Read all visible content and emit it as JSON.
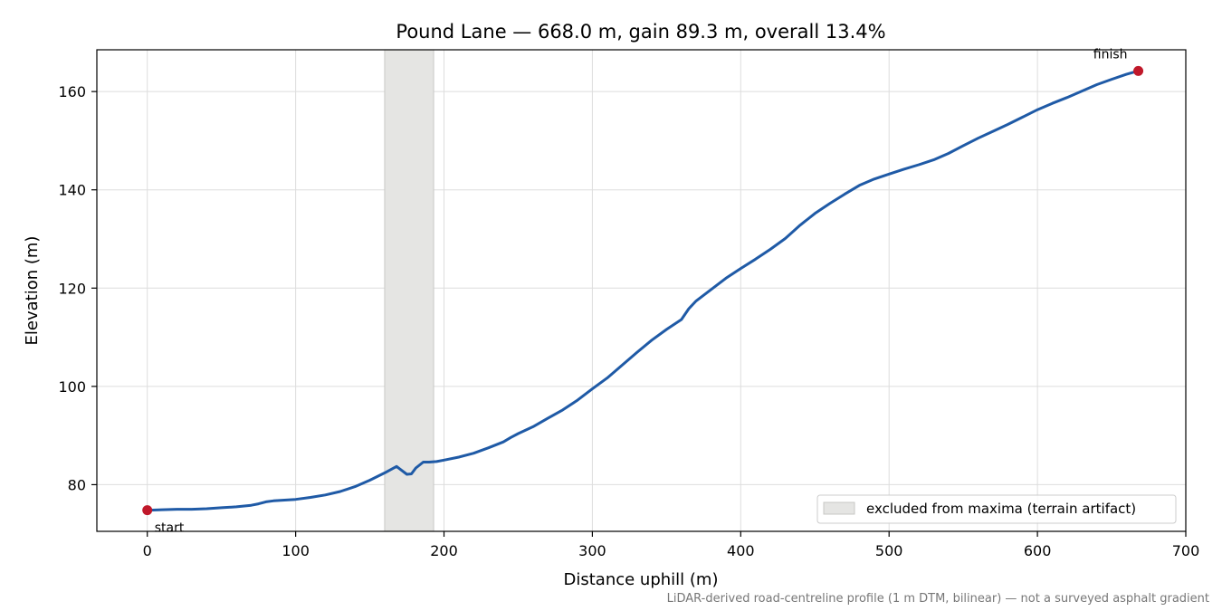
{
  "chart_data": {
    "type": "line",
    "title": "Pound Lane — 668.0 m, gain 89.3 m, overall 13.4%",
    "xlabel": "Distance uphill (m)",
    "ylabel": "Elevation (m)",
    "xlim": [
      -34,
      700
    ],
    "ylim": [
      70.5,
      168.5
    ],
    "xticks": [
      0,
      100,
      200,
      300,
      400,
      500,
      600,
      700
    ],
    "yticks": [
      80,
      100,
      120,
      140,
      160
    ],
    "grid": true,
    "legend_position": "bottom-right",
    "line_color": "#1f5aa6",
    "marker_color": "#c0182a",
    "band_color": "#e5e5e3",
    "series": [
      {
        "name": "",
        "x": [
          0,
          10,
          20,
          30,
          40,
          50,
          60,
          70,
          75,
          80,
          85,
          90,
          100,
          110,
          120,
          130,
          140,
          150,
          160,
          168,
          171,
          175,
          178,
          181,
          186,
          190,
          195,
          200,
          210,
          220,
          230,
          240,
          245,
          250,
          260,
          270,
          280,
          290,
          300,
          310,
          320,
          330,
          340,
          350,
          360,
          365,
          370,
          380,
          390,
          400,
          410,
          420,
          430,
          440,
          450,
          460,
          470,
          480,
          490,
          500,
          510,
          520,
          530,
          540,
          550,
          560,
          570,
          580,
          590,
          600,
          610,
          620,
          630,
          640,
          650,
          660,
          668
        ],
        "y": [
          74.8,
          74.9,
          75.0,
          75.0,
          75.1,
          75.3,
          75.5,
          75.8,
          76.1,
          76.5,
          76.7,
          76.8,
          77.0,
          77.4,
          77.9,
          78.6,
          79.6,
          80.9,
          82.4,
          83.7,
          83.0,
          82.1,
          82.2,
          83.4,
          84.6,
          84.6,
          84.7,
          85.0,
          85.6,
          86.4,
          87.5,
          88.7,
          89.6,
          90.4,
          91.8,
          93.5,
          95.2,
          97.2,
          99.5,
          101.7,
          104.3,
          106.9,
          109.4,
          111.6,
          113.6,
          115.8,
          117.4,
          119.7,
          122.0,
          124.0,
          125.9,
          127.9,
          130.1,
          132.8,
          135.2,
          137.2,
          139.1,
          140.9,
          142.2,
          143.2,
          144.2,
          145.1,
          146.1,
          147.4,
          149.0,
          150.5,
          151.9,
          153.3,
          154.8,
          156.3,
          157.6,
          158.8,
          160.1,
          161.4,
          162.5,
          163.5,
          164.2
        ]
      }
    ],
    "excluded_band": [
      160,
      193
    ],
    "legend": {
      "label": "excluded from maxima (terrain artifact)"
    },
    "annotations": [
      {
        "text": "start",
        "x": 0,
        "y": 74.8
      },
      {
        "text": "finish",
        "x": 668,
        "y": 164.2
      }
    ],
    "footnote": "LiDAR-derived road-centreline profile (1 m DTM, bilinear) — not a surveyed asphalt gradient"
  }
}
